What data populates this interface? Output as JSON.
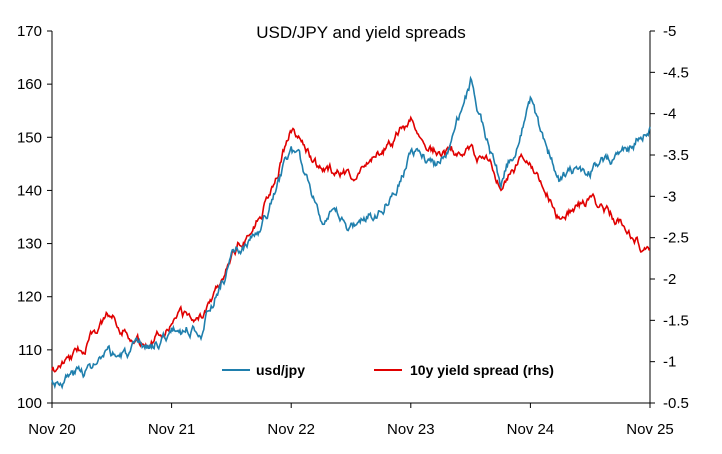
{
  "chart_data": {
    "type": "line",
    "title": "USD/JPY and yield spreads",
    "x_ticks": [
      "Nov 20",
      "Nov 21",
      "Nov 22",
      "Nov 23",
      "Nov 24",
      "Nov 25"
    ],
    "y_left": {
      "ylim": [
        100,
        170
      ],
      "ticks": [
        "100",
        "110",
        "120",
        "130",
        "140",
        "150",
        "160",
        "170"
      ]
    },
    "y_right": {
      "ylim": [
        -0.5,
        -5
      ],
      "ticks": [
        "-5",
        "-4.5",
        "-4",
        "-3.5",
        "-3",
        "-2.5",
        "-2",
        "-1.5",
        "-1",
        "-0.5"
      ]
    },
    "legend_position": "bottom-center",
    "series": [
      {
        "name": "usd/jpy",
        "axis": "left",
        "color": "#1f7fad",
        "x": [
          0,
          0.25,
          0.5,
          0.75,
          1,
          1.25,
          1.5,
          1.75,
          2,
          2.25,
          2.5,
          2.75,
          3,
          3.25,
          3.5,
          3.75,
          4,
          4.25,
          4.5,
          4.75,
          5
        ],
        "values": [
          104,
          106,
          108.5,
          109.5,
          113.5,
          114.5,
          127,
          132,
          148,
          136,
          133,
          137,
          147,
          145,
          160,
          141,
          156,
          142,
          144,
          147,
          152
        ]
      },
      {
        "name": "10y yield spread (rhs)",
        "axis": "right",
        "color": "#e00000",
        "x": [
          0,
          0.25,
          0.5,
          0.75,
          1,
          1.25,
          1.5,
          1.75,
          2,
          2.25,
          2.5,
          2.75,
          3,
          3.25,
          3.5,
          3.75,
          4,
          4.25,
          4.5,
          4.75,
          5
        ],
        "values": [
          -0.85,
          -1.15,
          -1.6,
          -1.2,
          -1.5,
          -1.55,
          -2.3,
          -2.8,
          -3.8,
          -3.3,
          -3.25,
          -3.55,
          -3.9,
          -3.5,
          -3.55,
          -3.2,
          -3.5,
          -2.75,
          -2.95,
          -2.7,
          -2.28
        ]
      }
    ]
  }
}
